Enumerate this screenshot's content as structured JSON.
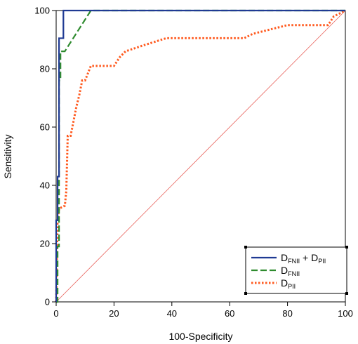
{
  "chart_data": {
    "type": "line",
    "title": "",
    "xlabel": "100-Specificity",
    "ylabel": "Sensitivity",
    "xlim": [
      0,
      100
    ],
    "ylim": [
      0,
      100
    ],
    "x_ticks": [
      "0",
      "20",
      "40",
      "60",
      "80",
      "100"
    ],
    "y_ticks": [
      "0",
      "20",
      "40",
      "60",
      "80",
      "100"
    ],
    "grid": false,
    "legend_position": "bottom-right",
    "reference_line": {
      "x": [
        0,
        100
      ],
      "y": [
        0,
        100
      ],
      "color": "#e8605a"
    },
    "series": [
      {
        "name_main": "D",
        "name_sub": "FNII",
        "name_join": " + D",
        "name_sub2": "PII",
        "color": "#1f3a93",
        "style": "solid",
        "x": [
          0,
          0,
          0.5,
          0.5,
          1,
          1,
          2.5,
          2.5,
          12,
          100
        ],
        "y": [
          0,
          28,
          28,
          43,
          43,
          90.5,
          90.5,
          100,
          100,
          100
        ]
      },
      {
        "name_main": "D",
        "name_sub": "FNII",
        "color": "#2e8b2e",
        "style": "dashed",
        "x": [
          0,
          0.5,
          0.5,
          1,
          1,
          1.5,
          1.5,
          3,
          3,
          12,
          100
        ],
        "y": [
          0,
          0,
          19,
          19,
          76,
          76,
          86,
          86,
          86,
          100,
          100
        ]
      },
      {
        "name_main": "D",
        "name_sub": "PII",
        "color": "#ff5a1f",
        "style": "dotted",
        "x": [
          0,
          0.5,
          1,
          3,
          3.5,
          4,
          5,
          6,
          7,
          8,
          9,
          10,
          12,
          20,
          22,
          24,
          30,
          38,
          50,
          60,
          65,
          68,
          72,
          80,
          90,
          94,
          96,
          100
        ],
        "y": [
          0,
          28,
          32,
          33,
          38,
          57,
          57,
          62,
          67,
          71,
          76,
          76,
          81,
          81,
          84,
          86,
          88,
          90.5,
          90.5,
          90.5,
          90.5,
          92,
          93,
          95,
          95,
          95,
          98,
          100
        ]
      }
    ]
  }
}
